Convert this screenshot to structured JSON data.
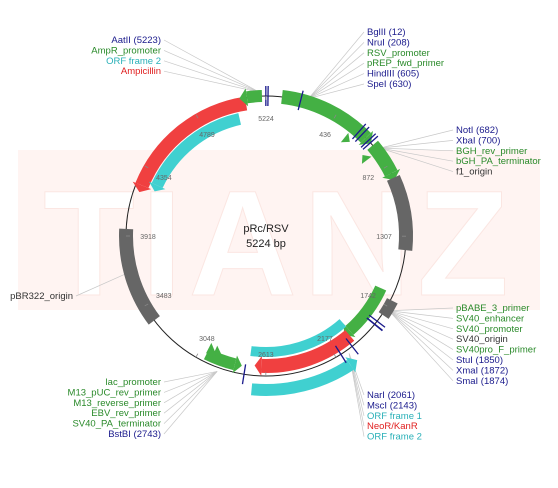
{
  "plasmid": {
    "name": "pRc/RSV",
    "size_label": "5224 bp",
    "total_bp": 5224
  },
  "watermark": "TIANZ",
  "colors": {
    "enzyme": "#1a1a8c",
    "primer": "#2a8a2a",
    "promoter": "#2a8a2a",
    "orf": "#2ab0b8",
    "gene": "#e02020",
    "origin": "#333333",
    "feature_green": "#44b044",
    "feature_red": "#f04040",
    "feature_cyan": "#40d0d0",
    "feature_grey": "#666666"
  },
  "ticks": [
    {
      "label": "436",
      "bp": 436
    },
    {
      "label": "872",
      "bp": 872
    },
    {
      "label": "1307",
      "bp": 1307
    },
    {
      "label": "1742",
      "bp": 1742
    },
    {
      "label": "2177",
      "bp": 2177
    },
    {
      "label": "2613",
      "bp": 2613
    },
    {
      "label": "3048",
      "bp": 3048
    },
    {
      "label": "3483",
      "bp": 3483
    },
    {
      "label": "3918",
      "bp": 3918
    },
    {
      "label": "4354",
      "bp": 4354
    },
    {
      "label": "4789",
      "bp": 4789
    },
    {
      "label": "5224",
      "bp": 0
    }
  ],
  "label_groups": [
    {
      "id": "top-left",
      "side": "left",
      "anchor_bp": 5185,
      "items": [
        {
          "text": "AatII (5223)",
          "kind": "enzyme"
        },
        {
          "text": "AmpR_promoter",
          "kind": "promoter"
        },
        {
          "text": "ORF frame 2",
          "kind": "orf"
        },
        {
          "text": "Ampicillin",
          "kind": "gene"
        }
      ]
    },
    {
      "id": "top-right",
      "side": "right",
      "anchor_bp": 250,
      "items": [
        {
          "text": "BglII (12)",
          "kind": "enzyme"
        },
        {
          "text": "NruI (208)",
          "kind": "enzyme"
        },
        {
          "text": "RSV_promoter",
          "kind": "promoter"
        },
        {
          "text": "pREP_fwd_primer",
          "kind": "primer"
        },
        {
          "text": "HindIII (605)",
          "kind": "enzyme"
        },
        {
          "text": "SpeI (630)",
          "kind": "enzyme"
        }
      ]
    },
    {
      "id": "right-upper",
      "side": "right",
      "anchor_bp": 760,
      "items": [
        {
          "text": "NotI (682)",
          "kind": "enzyme"
        },
        {
          "text": "XbaI (700)",
          "kind": "enzyme"
        },
        {
          "text": "BGH_rev_primer",
          "kind": "primer"
        },
        {
          "text": "bGH_PA_terminator",
          "kind": "promoter"
        },
        {
          "text": "f1_origin",
          "kind": "origin"
        }
      ]
    },
    {
      "id": "right-lower",
      "side": "right",
      "anchor_bp": 1760,
      "items": [
        {
          "text": "pBABE_3_primer",
          "kind": "primer"
        },
        {
          "text": "SV40_enhancer",
          "kind": "promoter"
        },
        {
          "text": "SV40_promoter",
          "kind": "promoter"
        },
        {
          "text": "SV40_origin",
          "kind": "origin"
        },
        {
          "text": "SV40pro_F_primer",
          "kind": "primer"
        },
        {
          "text": "StuI (1850)",
          "kind": "enzyme"
        },
        {
          "text": "XmaI (1872)",
          "kind": "enzyme"
        },
        {
          "text": "SmaI (1874)",
          "kind": "enzyme"
        }
      ]
    },
    {
      "id": "bottom-right",
      "side": "right",
      "anchor_bp": 2100,
      "items": [
        {
          "text": "NarI (2061)",
          "kind": "enzyme"
        },
        {
          "text": "MscI (2143)",
          "kind": "enzyme"
        },
        {
          "text": "ORF frame 1",
          "kind": "orf"
        },
        {
          "text": "NeoR/KanR",
          "kind": "gene"
        },
        {
          "text": "ORF frame 2",
          "kind": "orf"
        }
      ]
    },
    {
      "id": "bottom-left",
      "side": "left",
      "anchor_bp": 2900,
      "items": [
        {
          "text": "lac_promoter",
          "kind": "promoter"
        },
        {
          "text": "M13_pUC_rev_primer",
          "kind": "primer"
        },
        {
          "text": "M13_reverse_primer",
          "kind": "primer"
        },
        {
          "text": "EBV_rev_primer",
          "kind": "primer"
        },
        {
          "text": "SV40_PA_terminator",
          "kind": "promoter"
        },
        {
          "text": "BstBI (2743)",
          "kind": "enzyme"
        }
      ]
    },
    {
      "id": "left",
      "side": "left",
      "anchor_bp": 3700,
      "items": [
        {
          "text": "pBR322_origin",
          "kind": "origin"
        }
      ]
    }
  ]
}
